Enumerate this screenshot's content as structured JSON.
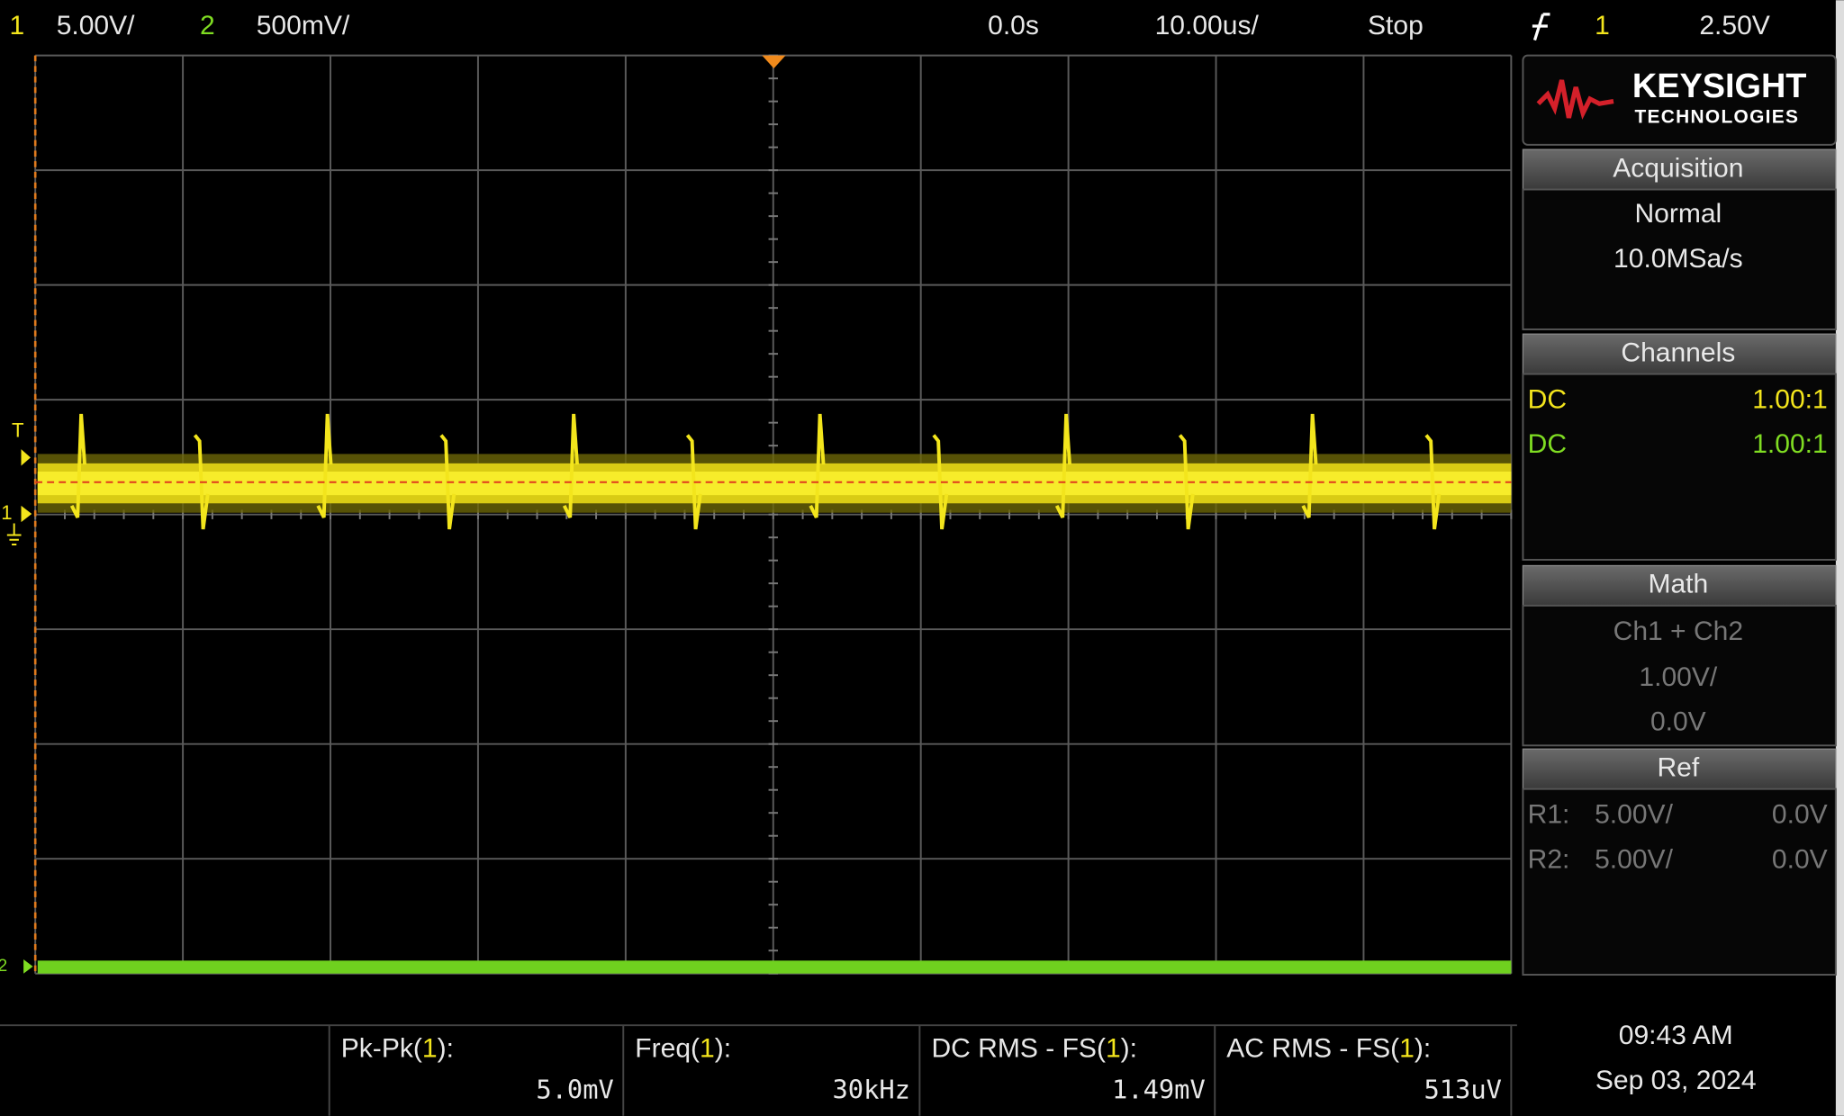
{
  "top_bar": {
    "ch1_label": "1",
    "ch1_scale": "5.00V/",
    "ch2_label": "2",
    "ch2_scale": "500mV/",
    "time_offset": "0.0s",
    "time_scale": "10.00us/",
    "run_state": "Stop",
    "trigger_source": "1",
    "trigger_level": "2.50V"
  },
  "markers": {
    "trigger": "T",
    "ch1": "1",
    "ch2": "2"
  },
  "logo": {
    "brand": "KEYSIGHT",
    "sub": "TECHNOLOGIES"
  },
  "acquisition": {
    "title": "Acquisition",
    "mode": "Normal",
    "rate": "10.0MSa/s"
  },
  "channels": {
    "title": "Channels",
    "rows": [
      {
        "coupling": "DC",
        "probe": "1.00:1"
      },
      {
        "coupling": "DC",
        "probe": "1.00:1"
      }
    ]
  },
  "math": {
    "title": "Math",
    "function": "Ch1 + Ch2",
    "scale": "1.00V/",
    "offset": "0.0V"
  },
  "ref": {
    "title": "Ref",
    "rows": [
      {
        "label": "R1:",
        "scale": "5.00V/",
        "offset": "0.0V"
      },
      {
        "label": "R2:",
        "scale": "5.00V/",
        "offset": "0.0V"
      }
    ]
  },
  "measurements": [
    {
      "prefix": "Pk-Pk(",
      "source": "1",
      "suffix": "):",
      "value": "5.0mV"
    },
    {
      "prefix": "Freq(",
      "source": "1",
      "suffix": "):",
      "value": "30kHz"
    },
    {
      "prefix": "DC RMS - FS(",
      "source": "1",
      "suffix": "):",
      "value": "1.49mV"
    },
    {
      "prefix": "AC RMS - FS(",
      "source": "1",
      "suffix": "):",
      "value": "513uV"
    }
  ],
  "clock": {
    "time": "09:43 AM",
    "date": "Sep 03, 2024"
  }
}
